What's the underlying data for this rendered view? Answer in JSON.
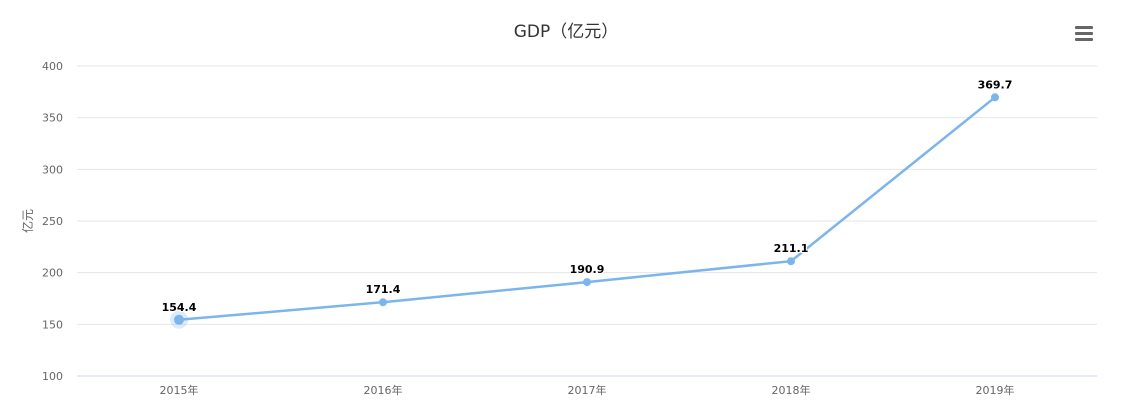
{
  "chart_data": {
    "type": "line",
    "title": "GDP（亿元）",
    "xlabel": "",
    "ylabel": "亿元",
    "categories": [
      "2015年",
      "2016年",
      "2017年",
      "2018年",
      "2019年"
    ],
    "series": [
      {
        "name": "GDP",
        "values": [
          154.4,
          171.4,
          190.9,
          211.1,
          369.7
        ],
        "color": "#7cb5ec"
      }
    ],
    "ylim": [
      100,
      400
    ],
    "yticks": [
      100,
      150,
      200,
      250,
      300,
      350,
      400
    ],
    "grid": true,
    "legend": "none"
  },
  "menu_icon": "hamburger-menu-icon"
}
